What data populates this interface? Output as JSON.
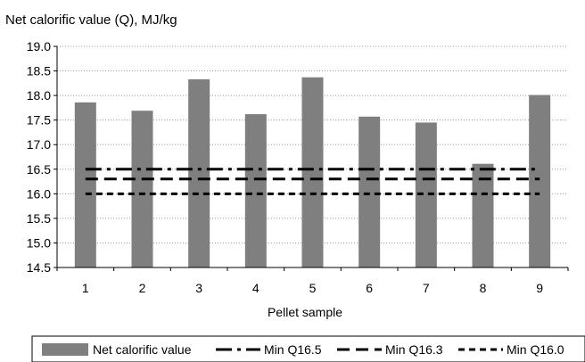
{
  "chart_data": {
    "type": "bar",
    "title": "Net calorific value (Q), MJ/kg",
    "xlabel": "Pellet sample",
    "ylabel": "",
    "ylim": [
      14.5,
      19.0
    ],
    "ytick_step": 0.5,
    "y_tick_labels": [
      "14.5",
      "15.0",
      "15.5",
      "16.0",
      "16.5",
      "17.0",
      "17.5",
      "18.0",
      "18.5",
      "19.0"
    ],
    "categories": [
      "1",
      "2",
      "3",
      "4",
      "5",
      "6",
      "7",
      "8",
      "9"
    ],
    "grid": "horizontal dotted",
    "legend_position": "bottom",
    "series": [
      {
        "name": "Net calorific value",
        "kind": "bar",
        "color": "#7f7f7f",
        "values": [
          17.86,
          17.69,
          18.33,
          17.62,
          18.37,
          17.57,
          17.45,
          16.61,
          18.01
        ]
      },
      {
        "name": "Min Q16.5",
        "kind": "line",
        "style": "long-dash-dot",
        "color": "#000000",
        "values": [
          16.5,
          16.5,
          16.5,
          16.5,
          16.5,
          16.5,
          16.5,
          16.5,
          16.5
        ]
      },
      {
        "name": "Min Q16.3",
        "kind": "line",
        "style": "dash",
        "color": "#000000",
        "values": [
          16.3,
          16.3,
          16.3,
          16.3,
          16.3,
          16.3,
          16.3,
          16.3,
          16.3
        ]
      },
      {
        "name": "Min Q16.0",
        "kind": "line",
        "style": "short-dash",
        "color": "#000000",
        "values": [
          16.0,
          16.0,
          16.0,
          16.0,
          16.0,
          16.0,
          16.0,
          16.0,
          16.0
        ]
      }
    ]
  }
}
